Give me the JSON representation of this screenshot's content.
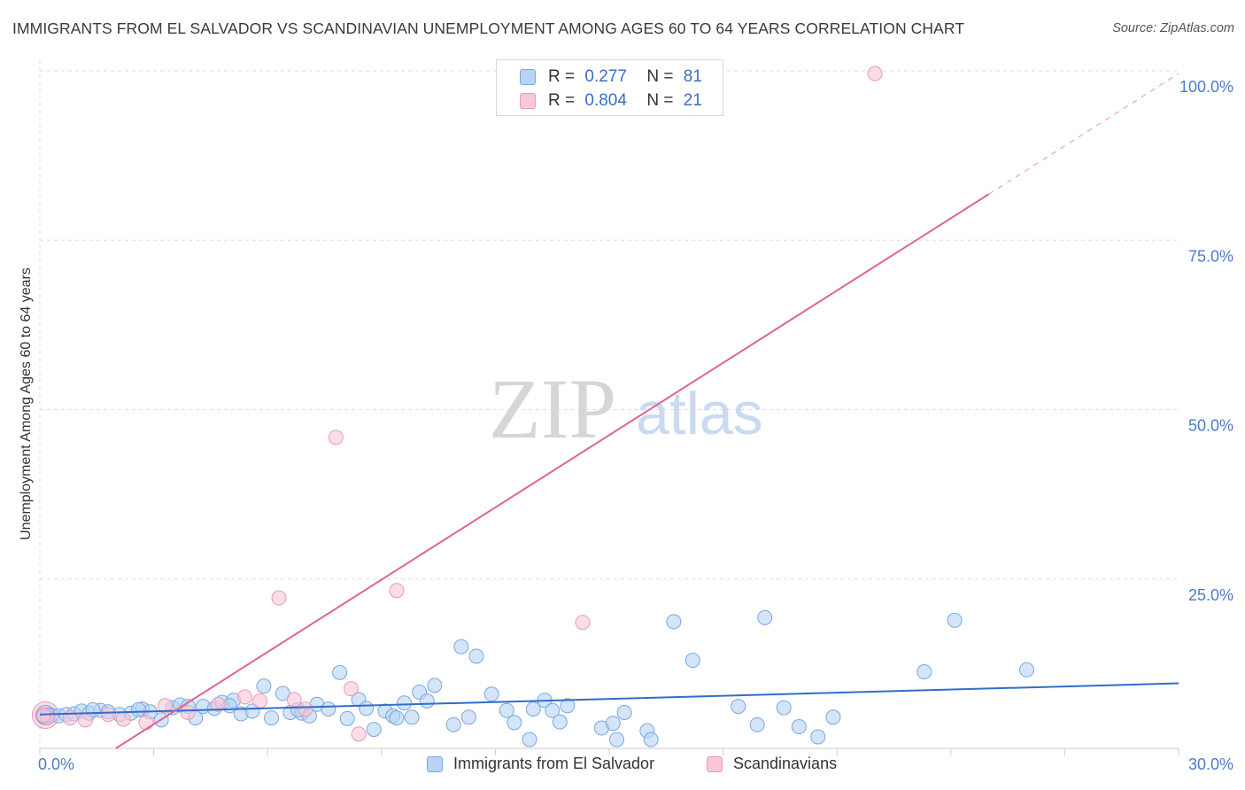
{
  "title": "IMMIGRANTS FROM EL SALVADOR VS SCANDINAVIAN UNEMPLOYMENT AMONG AGES 60 TO 64 YEARS CORRELATION CHART",
  "source": "Source: ZipAtlas.com",
  "watermark": {
    "zip": "ZIP",
    "atlas": "atlas"
  },
  "colors": {
    "blue_fill": "#b8d3f5",
    "blue_stroke": "#7aa7e0",
    "blue_line": "#2e6fcc",
    "pink_fill": "#f9c7d6",
    "pink_stroke": "#ec9ab4",
    "pink_line": "#e0648f",
    "grid": "#dddddd",
    "tick": "#4a7cc9"
  },
  "legend": {
    "rows": [
      {
        "r_label": "R =",
        "r_value": "0.277",
        "n_label": "N =",
        "n_value": "81"
      },
      {
        "r_label": "R =",
        "r_value": "0.804",
        "n_label": "N =",
        "n_value": "21"
      }
    ]
  },
  "bottom_legend": [
    {
      "label": "Immigrants from El Salvador"
    },
    {
      "label": "Scandinavians"
    }
  ],
  "chart_data": {
    "type": "scatter",
    "title": "IMMIGRANTS FROM EL SALVADOR VS SCANDINAVIAN UNEMPLOYMENT AMONG AGES 60 TO 64 YEARS CORRELATION CHART",
    "xlabel": "",
    "ylabel": "Unemployment Among Ages 60 to 64 years",
    "xlim": [
      0,
      30
    ],
    "ylim": [
      0,
      100
    ],
    "x_tick_labels": [
      "0.0%",
      "30.0%"
    ],
    "y_ticks": [
      25,
      50,
      75,
      100
    ],
    "y_tick_labels": [
      "25.0%",
      "50.0%",
      "75.0%",
      "100.0%"
    ],
    "grid": true,
    "series": [
      {
        "name": "Immigrants from El Salvador",
        "color": "#b8d3f5",
        "trend": {
          "x": [
            0,
            30
          ],
          "y": [
            5.0,
            9.6
          ]
        },
        "points": [
          [
            0.1,
            4.7
          ],
          [
            0.3,
            4.9
          ],
          [
            0.5,
            4.8
          ],
          [
            0.7,
            5.0
          ],
          [
            0.9,
            5.1
          ],
          [
            1.1,
            5.5
          ],
          [
            1.3,
            5.2
          ],
          [
            1.6,
            5.6
          ],
          [
            1.8,
            5.4
          ],
          [
            2.1,
            5.0
          ],
          [
            2.4,
            5.2
          ],
          [
            2.7,
            5.8
          ],
          [
            2.9,
            5.4
          ],
          [
            3.2,
            4.2
          ],
          [
            3.5,
            6.0
          ],
          [
            3.7,
            6.4
          ],
          [
            4.1,
            4.5
          ],
          [
            4.3,
            6.2
          ],
          [
            4.6,
            5.9
          ],
          [
            4.8,
            6.8
          ],
          [
            5.1,
            7.1
          ],
          [
            5.3,
            5.1
          ],
          [
            5.6,
            5.5
          ],
          [
            5.9,
            9.2
          ],
          [
            6.1,
            4.5
          ],
          [
            6.4,
            8.1
          ],
          [
            6.6,
            5.3
          ],
          [
            6.9,
            5.2
          ],
          [
            7.1,
            4.8
          ],
          [
            7.3,
            6.5
          ],
          [
            7.6,
            5.8
          ],
          [
            7.9,
            11.2
          ],
          [
            8.1,
            4.4
          ],
          [
            8.4,
            7.2
          ],
          [
            8.6,
            5.9
          ],
          [
            8.8,
            2.8
          ],
          [
            9.1,
            5.5
          ],
          [
            9.3,
            4.8
          ],
          [
            9.6,
            6.7
          ],
          [
            9.8,
            4.6
          ],
          [
            10.0,
            8.3
          ],
          [
            10.2,
            7.0
          ],
          [
            10.4,
            9.3
          ],
          [
            10.9,
            3.5
          ],
          [
            11.1,
            15.0
          ],
          [
            11.3,
            4.6
          ],
          [
            11.5,
            13.6
          ],
          [
            11.9,
            8.0
          ],
          [
            12.3,
            5.6
          ],
          [
            12.5,
            3.8
          ],
          [
            12.9,
            1.3
          ],
          [
            13.0,
            5.8
          ],
          [
            13.3,
            7.1
          ],
          [
            13.5,
            5.6
          ],
          [
            13.7,
            3.9
          ],
          [
            13.9,
            6.3
          ],
          [
            14.8,
            3.0
          ],
          [
            15.1,
            3.7
          ],
          [
            15.2,
            1.3
          ],
          [
            15.4,
            5.3
          ],
          [
            16.0,
            2.6
          ],
          [
            16.1,
            1.3
          ],
          [
            16.7,
            18.7
          ],
          [
            17.2,
            13.0
          ],
          [
            18.4,
            6.2
          ],
          [
            18.9,
            3.5
          ],
          [
            19.1,
            19.3
          ],
          [
            19.6,
            6.0
          ],
          [
            20.0,
            3.2
          ],
          [
            20.5,
            1.7
          ],
          [
            20.9,
            4.6
          ],
          [
            23.3,
            11.3
          ],
          [
            24.1,
            18.9
          ],
          [
            26.0,
            11.6
          ],
          [
            0.2,
            4.9
          ],
          [
            1.4,
            5.7
          ],
          [
            2.6,
            5.7
          ],
          [
            3.9,
            6.2
          ],
          [
            5.0,
            6.3
          ],
          [
            6.8,
            5.7
          ],
          [
            9.4,
            4.5
          ]
        ]
      },
      {
        "name": "Scandinavians",
        "color": "#f9c7d6",
        "trend": {
          "x": [
            2.0,
            25.0
          ],
          "y": [
            0.0,
            81.8
          ]
        },
        "trend_dashed": {
          "x": [
            25.0,
            30.0
          ],
          "y": [
            81.8,
            99.6
          ]
        },
        "points": [
          [
            0.2,
            4.5
          ],
          [
            0.8,
            4.5
          ],
          [
            1.2,
            4.2
          ],
          [
            1.8,
            5.0
          ],
          [
            2.2,
            4.3
          ],
          [
            2.8,
            3.8
          ],
          [
            3.3,
            6.3
          ],
          [
            3.9,
            5.3
          ],
          [
            4.7,
            6.5
          ],
          [
            5.4,
            7.6
          ],
          [
            5.8,
            7.0
          ],
          [
            6.3,
            22.2
          ],
          [
            6.7,
            7.2
          ],
          [
            7.0,
            5.8
          ],
          [
            7.8,
            45.9
          ],
          [
            8.2,
            8.8
          ],
          [
            8.4,
            2.1
          ],
          [
            9.4,
            23.3
          ],
          [
            14.3,
            18.6
          ],
          [
            22.0,
            99.6
          ],
          [
            0.1,
            4.9
          ]
        ]
      }
    ]
  }
}
